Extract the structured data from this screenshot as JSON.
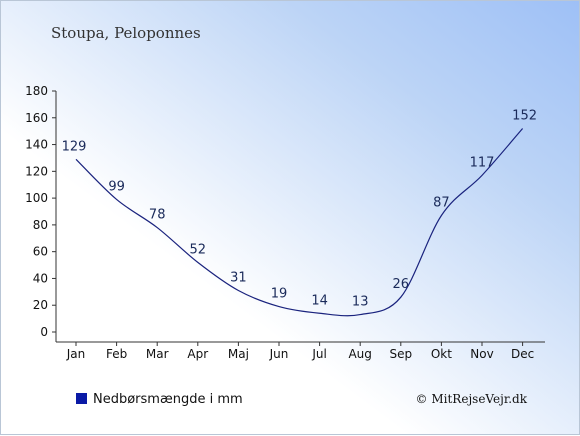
{
  "chart_data": {
    "type": "line",
    "title": "Stoupa, Peloponnes",
    "categories": [
      "Jan",
      "Feb",
      "Mar",
      "Apr",
      "Maj",
      "Jun",
      "Jul",
      "Aug",
      "Sep",
      "Okt",
      "Nov",
      "Dec"
    ],
    "series": [
      {
        "name": "Nedbørsmængde i mm",
        "values": [
          129,
          99,
          78,
          52,
          31,
          19,
          14,
          13,
          26,
          87,
          117,
          152
        ]
      }
    ],
    "ylim": [
      0,
      180
    ],
    "yticks": [
      0,
      20,
      40,
      60,
      80,
      100,
      120,
      140,
      160,
      180
    ],
    "grid": false,
    "legend_position": "bottom-left",
    "colors": {
      "line": "#1a237e",
      "legend_marker": "#0a1aa6",
      "labels": "#1a2a5a"
    }
  },
  "credit": "© MitRejseVejr.dk"
}
